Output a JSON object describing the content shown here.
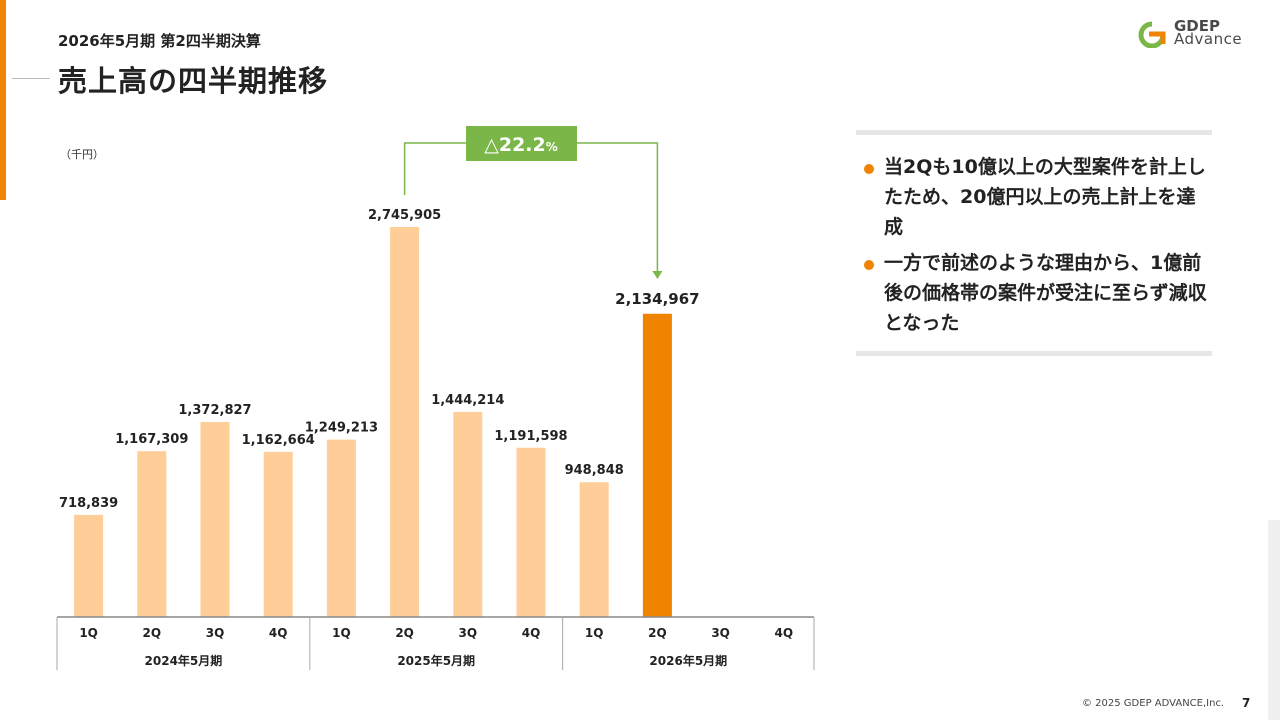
{
  "header": {
    "subtitle": "2026年5月期 第2四半期決算",
    "title": "売上高の四半期推移"
  },
  "logo": {
    "line1": "GDEP",
    "line2": "Advance"
  },
  "chart_data": {
    "type": "bar",
    "unit_label": "（千円）",
    "categories": [
      "1Q",
      "2Q",
      "3Q",
      "4Q",
      "1Q",
      "2Q",
      "3Q",
      "4Q",
      "1Q",
      "2Q",
      "3Q",
      "4Q"
    ],
    "groups": [
      {
        "label": "2024年5月期",
        "categories": [
          "1Q",
          "2Q",
          "3Q",
          "4Q"
        ]
      },
      {
        "label": "2025年5月期",
        "categories": [
          "1Q",
          "2Q",
          "3Q",
          "4Q"
        ]
      },
      {
        "label": "2026年5月期",
        "categories": [
          "1Q",
          "2Q",
          "3Q",
          "4Q"
        ]
      }
    ],
    "values": [
      718839,
      1167309,
      1372827,
      1162664,
      1249213,
      2745905,
      1444214,
      1191598,
      948848,
      2134967,
      null,
      null
    ],
    "data_labels": [
      "718,839",
      "1,167,309",
      "1,372,827",
      "1,162,664",
      "1,249,213",
      "2,745,905",
      "1,444,214",
      "1,191,598",
      "948,848",
      "2,134,967",
      "",
      ""
    ],
    "highlight_index": 9,
    "colors": {
      "bar": "#ffcd98",
      "highlight": "#f08300",
      "axis": "#888888",
      "annotation": "#7ab648"
    },
    "annotation": {
      "text": "△22.2",
      "suffix": "%",
      "from_index": 5,
      "to_index": 9
    },
    "ylim": [
      0,
      3000000
    ]
  },
  "panel": {
    "bullets": [
      "当2Qも10億以上の大型案件を計上したため、20億円以上の売上計上を達成",
      "一方で前述のような理由から、1億前後の価格帯の案件が受注に至らず減収となった"
    ]
  },
  "footer": {
    "copyright": "© 2025 GDEP ADVANCE,Inc.",
    "page": "7"
  }
}
